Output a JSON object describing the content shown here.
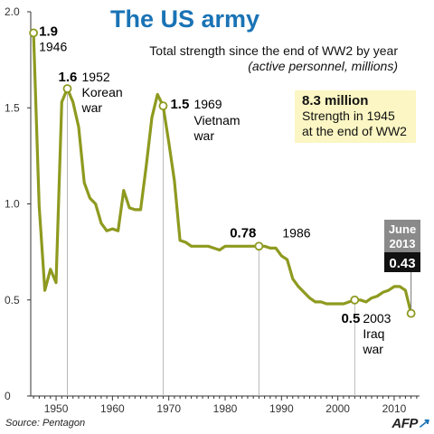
{
  "title": "The US army",
  "subtitle": "Total strength since the end of WW2 by year",
  "unit_note": "(active personnel, millions)",
  "callout": {
    "value": "8.3 million",
    "line1": "Strength in 1945",
    "line2": "at the end of WW2"
  },
  "source": "Source: Pentagon",
  "logo": "AFP",
  "colors": {
    "title": "#1a73b5",
    "line": "#8e9a1f",
    "callout_bg": "#fbf6c3",
    "badge_date": "#8a8a8a",
    "badge_value": "#111111"
  },
  "chart_data": {
    "type": "line",
    "xlim": [
      1945.5,
      2014.5
    ],
    "ylim": [
      0,
      2.0
    ],
    "y_ticks": [
      {
        "value": 0,
        "label": "0"
      },
      {
        "value": 0.5,
        "label": "0.5"
      },
      {
        "value": 1.0,
        "label": "1.0"
      },
      {
        "value": 1.5,
        "label": "1.5"
      },
      {
        "value": 2.0,
        "label": "2.0"
      }
    ],
    "x_ticks": [
      {
        "value": 1950,
        "label": "1950"
      },
      {
        "value": 1960,
        "label": "1960"
      },
      {
        "value": 1970,
        "label": "1970"
      },
      {
        "value": 1980,
        "label": "1980"
      },
      {
        "value": 1990,
        "label": "1990"
      },
      {
        "value": 2000,
        "label": "2000"
      },
      {
        "value": 2010,
        "label": "2010"
      }
    ],
    "grid": false,
    "x": [
      1946,
      1947,
      1948,
      1949,
      1950,
      1951,
      1952,
      1953,
      1954,
      1955,
      1956,
      1957,
      1958,
      1959,
      1960,
      1961,
      1962,
      1963,
      1964,
      1965,
      1966,
      1967,
      1968,
      1969,
      1970,
      1971,
      1972,
      1973,
      1974,
      1975,
      1976,
      1977,
      1978,
      1979,
      1980,
      1981,
      1982,
      1983,
      1984,
      1985,
      1986,
      1987,
      1988,
      1989,
      1990,
      1991,
      1992,
      1993,
      1994,
      1995,
      1996,
      1997,
      1998,
      1999,
      2000,
      2001,
      2002,
      2003,
      2004,
      2005,
      2006,
      2007,
      2008,
      2009,
      2010,
      2011,
      2012,
      2013
    ],
    "values": [
      1.89,
      0.99,
      0.55,
      0.66,
      0.59,
      1.53,
      1.6,
      1.53,
      1.4,
      1.11,
      1.03,
      1.0,
      0.9,
      0.86,
      0.87,
      0.86,
      1.07,
      0.98,
      0.97,
      0.97,
      1.2,
      1.45,
      1.57,
      1.51,
      1.32,
      1.12,
      0.81,
      0.8,
      0.78,
      0.78,
      0.78,
      0.78,
      0.77,
      0.76,
      0.78,
      0.78,
      0.78,
      0.78,
      0.78,
      0.78,
      0.78,
      0.78,
      0.77,
      0.77,
      0.73,
      0.71,
      0.61,
      0.57,
      0.54,
      0.51,
      0.49,
      0.49,
      0.48,
      0.48,
      0.48,
      0.48,
      0.49,
      0.5,
      0.5,
      0.49,
      0.51,
      0.52,
      0.54,
      0.55,
      0.57,
      0.57,
      0.55,
      0.43
    ],
    "annotations": [
      {
        "x": 1946,
        "y": 1.89,
        "value": "1.9",
        "label": "1946"
      },
      {
        "x": 1952,
        "y": 1.6,
        "value": "1.6",
        "label": "1952",
        "label2": "Korean",
        "label3": "war"
      },
      {
        "x": 1969,
        "y": 1.51,
        "value": "1.5",
        "label": "1969",
        "label2": "Vietnam",
        "label3": "war"
      },
      {
        "x": 1986,
        "y": 0.78,
        "value": "0.78",
        "label": "1986"
      },
      {
        "x": 2003,
        "y": 0.5,
        "value": "0.5",
        "label": "2003",
        "label2": "Iraq",
        "label3": "war"
      }
    ],
    "end_badge": {
      "x": 2013,
      "y": 0.43,
      "month": "June",
      "year": "2013",
      "value": "0.43"
    }
  }
}
